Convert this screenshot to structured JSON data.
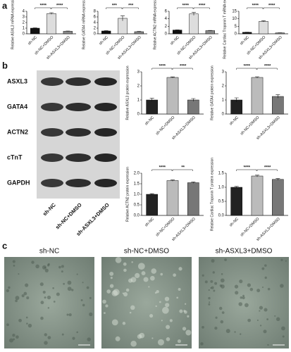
{
  "panel_labels": [
    "a",
    "b",
    "c"
  ],
  "chart_data": [
    {
      "type": "bar",
      "ylabel": "Relative ASXL3 mRNA expression",
      "categories": [
        "sh-NC",
        "sh-NC+DMSO",
        "sh-ASXL3+DMSO"
      ],
      "values": [
        1.0,
        3.6,
        0.45
      ],
      "errors": [
        0.05,
        0.15,
        0.05
      ],
      "colors": [
        "#111111",
        "#dddddd",
        "#888888"
      ],
      "ylim": [
        0,
        4
      ],
      "yticks": [
        0,
        1,
        2,
        3,
        4
      ],
      "annotations": [
        "****",
        "****"
      ]
    },
    {
      "type": "bar",
      "ylabel": "Relative GATA4 mRNA expression",
      "categories": [
        "sh-NC",
        "sh-NC+DMSO",
        "sh-ASXL3+DMSO"
      ],
      "values": [
        1.0,
        5.5,
        0.75
      ],
      "errors": [
        0.1,
        0.9,
        0.1
      ],
      "colors": [
        "#111111",
        "#dddddd",
        "#888888"
      ],
      "ylim": [
        0,
        8
      ],
      "yticks": [
        0,
        2,
        4,
        6,
        8
      ],
      "annotations": [
        "***",
        "***"
      ]
    },
    {
      "type": "bar",
      "ylabel": "Relative ACTN2 mRNA expression",
      "categories": [
        "sh-NC",
        "sh-NC+DMSO",
        "sh-ASXL3+DMSO"
      ],
      "values": [
        1.0,
        5.3,
        0.85
      ],
      "errors": [
        0.05,
        0.4,
        0.05
      ],
      "colors": [
        "#111111",
        "#dddddd",
        "#888888"
      ],
      "ylim": [
        0,
        6
      ],
      "yticks": [
        0,
        2,
        4,
        6
      ],
      "annotations": [
        "****",
        "****"
      ]
    },
    {
      "type": "bar",
      "ylabel": "Relative Cardiac Troponin T mRNA expression",
      "categories": [
        "sh-NC",
        "sh-NC+DMSO",
        "sh-ASXL3+DMSO"
      ],
      "values": [
        1.0,
        8.3,
        0.6
      ],
      "errors": [
        0.1,
        0.4,
        0.1
      ],
      "colors": [
        "#111111",
        "#dddddd",
        "#888888"
      ],
      "ylim": [
        0,
        15
      ],
      "yticks": [
        0,
        5,
        10,
        15
      ],
      "annotations": [
        "****",
        "****"
      ]
    },
    {
      "type": "bar",
      "ylabel": "Relative ASXL3 protein expression",
      "categories": [
        "sh-NC",
        "sh-NC+DMSO",
        "sh-ASXL3+DMSO"
      ],
      "values": [
        1.0,
        2.6,
        1.0
      ],
      "errors": [
        0.12,
        0.04,
        0.1
      ],
      "colors": [
        "#222222",
        "#bbbbbb",
        "#777777"
      ],
      "ylim": [
        0,
        3
      ],
      "yticks": [
        0,
        1,
        2,
        3
      ],
      "annotations": [
        "****",
        "****"
      ]
    },
    {
      "type": "bar",
      "ylabel": "Relative GATA4 protein expression",
      "categories": [
        "sh-NC",
        "sh-NC+DMSO",
        "sh-ASXL3+DMSO"
      ],
      "values": [
        1.0,
        2.6,
        1.25
      ],
      "errors": [
        0.15,
        0.05,
        0.12
      ],
      "colors": [
        "#222222",
        "#bbbbbb",
        "#777777"
      ],
      "ylim": [
        0,
        3
      ],
      "yticks": [
        0,
        1,
        2,
        3
      ],
      "annotations": [
        "****",
        "****"
      ]
    },
    {
      "type": "bar",
      "ylabel": "Relative ACTN2 protein expression",
      "categories": [
        "sh-NC",
        "sh-NC+DMSO",
        "sh-ASXL3+DMSO"
      ],
      "values": [
        1.0,
        1.65,
        1.55
      ],
      "errors": [
        0.03,
        0.03,
        0.03
      ],
      "colors": [
        "#222222",
        "#bbbbbb",
        "#777777"
      ],
      "ylim": [
        0,
        2
      ],
      "yticks": [
        {
          "value": 0,
          "label": "0.0"
        },
        0.5,
        {
          "value": 1,
          "label": "1.0"
        },
        1.5,
        {
          "value": 2,
          "label": "2.0"
        }
      ],
      "annotations": [
        "****",
        "**"
      ]
    },
    {
      "type": "bar",
      "ylabel": "Relative Cardiac Troponin T protein expression",
      "categories": [
        "sh-NC",
        "sh-NC+DMSO",
        "sh-ASXL3+DMSO"
      ],
      "values": [
        1.0,
        1.4,
        1.28
      ],
      "errors": [
        0.03,
        0.03,
        0.03
      ],
      "colors": [
        "#222222",
        "#bbbbbb",
        "#777777"
      ],
      "ylim": [
        0,
        1.5
      ],
      "yticks": [
        {
          "value": 0,
          "label": "0.0"
        },
        0.5,
        {
          "value": 1,
          "label": "1.0"
        },
        1.5
      ],
      "annotations": [
        "****",
        "****"
      ]
    }
  ],
  "blot": {
    "rows": [
      "ASXL3",
      "GATA4",
      "ACTN2",
      "cTnT",
      "GAPDH"
    ],
    "lanes": [
      "sh-NC",
      "sh-NC+DMSO",
      "sh-ASXL3+DMSO"
    ]
  },
  "micrographs": [
    "sh-NC",
    "sh-NC+DMSO",
    "sh-ASXL3+DMSO"
  ]
}
